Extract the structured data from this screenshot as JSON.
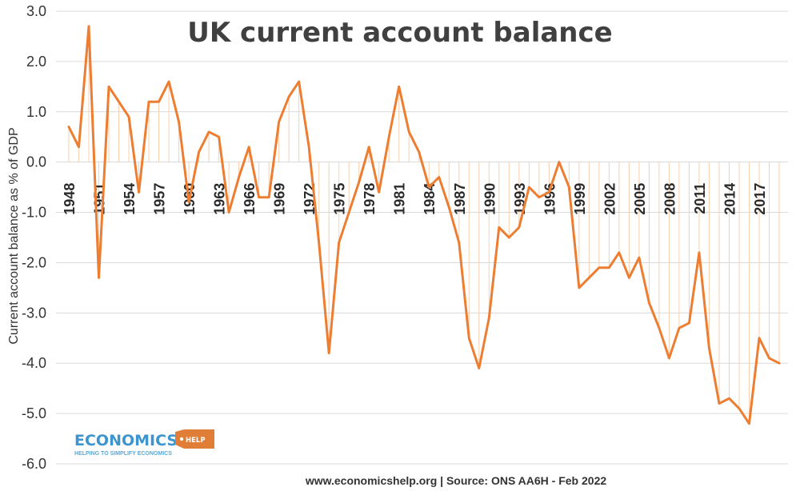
{
  "chart_data": {
    "type": "line",
    "title": "UK current account balance",
    "ylabel": "Current account balance as % of GDP",
    "xlabel": "",
    "ylim": [
      -6,
      3
    ],
    "yticks": [
      3,
      2,
      1,
      0,
      -1,
      -2,
      -3,
      -4,
      -5,
      -6
    ],
    "ytick_labels": [
      "3.0",
      "2.0",
      "1.0",
      "0.0",
      "-1.0",
      "-2.0",
      "-3.0",
      "-4.0",
      "-5.0",
      "-6.0"
    ],
    "x_tick_labels": [
      "1948",
      "1951",
      "1954",
      "1957",
      "1960",
      "1963",
      "1966",
      "1969",
      "1972",
      "1975",
      "1978",
      "1981",
      "1984",
      "1987",
      "1990",
      "1993",
      "1996",
      "1999",
      "2002",
      "2005",
      "2008",
      "2011",
      "2014",
      "2017"
    ],
    "grid": true,
    "legend": "none",
    "source": "www.economicshelp.org | Source: ONS AA6H - Feb 2022",
    "line_color": "#ed7d31",
    "drop_line_color": "#f8cfae",
    "series": [
      {
        "x": [
          1948,
          1949,
          1950,
          1951,
          1952,
          1953,
          1954,
          1955,
          1956,
          1957,
          1958,
          1959,
          1960,
          1961,
          1962,
          1963,
          1964,
          1965,
          1966,
          1967,
          1968,
          1969,
          1970,
          1971,
          1972,
          1973,
          1974,
          1975,
          1976,
          1977,
          1978,
          1979,
          1980,
          1981,
          1982,
          1983,
          1984,
          1985,
          1986,
          1987,
          1988,
          1989,
          1990,
          1991,
          1992,
          1993,
          1994,
          1995,
          1996,
          1997,
          1998,
          1999,
          2000,
          2001,
          2002,
          2003,
          2004,
          2005,
          2006,
          2007,
          2008,
          2009,
          2010,
          2011,
          2012,
          2013,
          2014,
          2015,
          2016,
          2017,
          2018,
          2019
        ],
        "values": [
          0.7,
          0.3,
          2.7,
          -2.3,
          1.5,
          1.2,
          0.9,
          -0.6,
          1.2,
          1.2,
          1.6,
          0.8,
          -0.8,
          0.2,
          0.6,
          0.5,
          -1.0,
          -0.3,
          0.3,
          -0.7,
          -0.7,
          0.8,
          1.3,
          1.6,
          0.3,
          -1.6,
          -3.8,
          -1.6,
          -1.0,
          -0.4,
          0.3,
          -0.6,
          0.5,
          1.5,
          0.6,
          0.2,
          -0.5,
          -0.3,
          -0.9,
          -1.6,
          -3.5,
          -4.1,
          -3.1,
          -1.3,
          -1.5,
          -1.3,
          -0.5,
          -0.7,
          -0.6,
          0.0,
          -0.5,
          -2.5,
          -2.3,
          -2.1,
          -2.1,
          -1.8,
          -2.3,
          -1.9,
          -2.8,
          -3.3,
          -3.9,
          -3.3,
          -3.2,
          -1.8,
          -3.7,
          -4.8,
          -4.7,
          -4.9,
          -5.2,
          -3.5,
          -3.9,
          -4.0
        ]
      }
    ]
  },
  "logo": {
    "name": "ECONOMICS",
    "tag": "HELP",
    "tagline": "HELPING TO SIMPLIFY ECONOMICS",
    "colors": {
      "name": "#3c95cf",
      "tag": "#e07d36"
    }
  }
}
